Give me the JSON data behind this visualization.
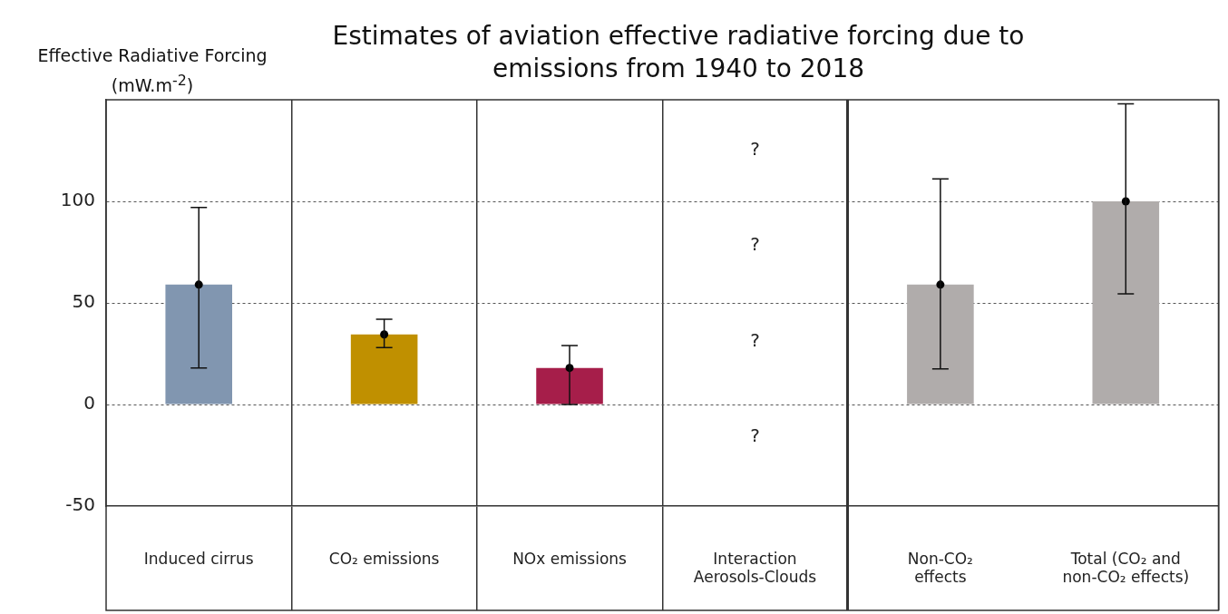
{
  "chart_data": {
    "type": "bar",
    "title": "Estimates of aviation effective radiative forcing due to emissions from 1940 to 2018",
    "ylabel": "Effective Radiative Forcing (mW.m$^{-2}$)",
    "categories": [
      "Induced cirrus",
      "CO₂ emissions",
      "NOx emissions",
      "Interaction Aerosols-Clouds",
      "Non-CO₂ effects",
      "Total (CO₂ and non-CO₂ effects)"
    ],
    "series": [
      {
        "type": "bar",
        "values": [
          59,
          34.5,
          18,
          null,
          59,
          100
        ],
        "colors": [
          "#8196b0",
          "#c09000",
          "#a61e4a",
          "#b0acab",
          "#b0acab",
          "#b0acab"
        ],
        "errors": [
          [
            18,
            97
          ],
          [
            28,
            42
          ],
          [
            0,
            29
          ],
          null,
          [
            17.5,
            111
          ],
          [
            54.5,
            148
          ]
        ]
      },
      {
        "type": "scatter",
        "x": [
          "Induced cirrus",
          "CO₂ emissions",
          "NOx emissions",
          "Interaction Aerosols-Clouds",
          "Non-CO₂ effects",
          "Total (CO₂ and non-CO₂ effects)"
        ],
        "values": [
          59,
          34.5,
          18,
          null,
          59,
          100
        ],
        "color": "#000000",
        "marker": "circle"
      }
    ],
    "ylim": [
      -50,
      150
    ],
    "yticks": [
      -50,
      0,
      50,
      100
    ],
    "grid": "y",
    "annotations": [
      "?",
      "?",
      "?",
      "?"
    ]
  }
}
